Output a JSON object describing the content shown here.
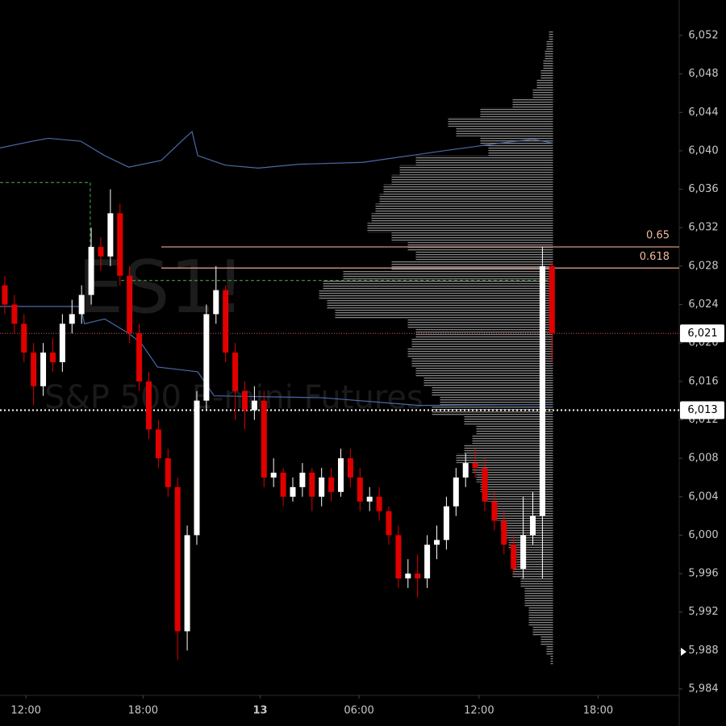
{
  "chart_data": {
    "type": "candlestick",
    "watermark": {
      "symbol": "ES1!",
      "name": "S&P 500 E-mini Futures"
    },
    "xlim": [
      -0.5,
      70.25
    ],
    "xticks": [
      {
        "value": 2.2,
        "label": "12:00"
      },
      {
        "value": 14.4,
        "label": "18:00"
      },
      {
        "value": 26.6,
        "label": "13"
      },
      {
        "value": 36.9,
        "label": "06:00"
      },
      {
        "value": 49.4,
        "label": "12:00"
      },
      {
        "value": 61.8,
        "label": "18:00"
      }
    ],
    "ylim": [
      5984,
      6052
    ],
    "yticks": [
      {
        "value": 5984,
        "label": "5,984"
      },
      {
        "value": 5988,
        "label": "5,988"
      },
      {
        "value": 5992,
        "label": "5,992"
      },
      {
        "value": 5996,
        "label": "5,996"
      },
      {
        "value": 6000,
        "label": "6,000"
      },
      {
        "value": 6004,
        "label": "6,004"
      },
      {
        "value": 6008,
        "label": "6,008"
      },
      {
        "value": 6012,
        "label": "6,012"
      },
      {
        "value": 6016,
        "label": "6,016"
      },
      {
        "value": 6020,
        "label": "6,020"
      },
      {
        "value": 6024,
        "label": "6,024"
      },
      {
        "value": 6028,
        "label": "6,028"
      },
      {
        "value": 6032,
        "label": "6,032"
      },
      {
        "value": 6036,
        "label": "6,036"
      },
      {
        "value": 6040,
        "label": "6,040"
      },
      {
        "value": 6044,
        "label": "6,044"
      },
      {
        "value": 6048,
        "label": "6,048"
      },
      {
        "value": 6052,
        "label": "6,052"
      }
    ],
    "up_color": "#ffffff",
    "down_color": "#e00000",
    "open": [
      6026,
      6024,
      6022,
      6019,
      6015.5,
      6019,
      6018,
      6022,
      6023,
      6025,
      6030,
      6029,
      6033.5,
      6027,
      6021,
      6016,
      6011,
      6008,
      6005,
      5990,
      6000,
      6014,
      6023,
      6025.5,
      6019,
      6015,
      6013,
      6014,
      6006,
      6006.5,
      6004,
      6005,
      6006.5,
      6004,
      6006,
      6004.5,
      6008,
      6006,
      6003.5,
      6004,
      6002.5,
      6000,
      5995.5,
      5996,
      5995.5,
      5999,
      5999.5,
      6003,
      6006,
      6007.5,
      6007,
      6003.5,
      6001.5,
      5999,
      5996.5,
      6000,
      6002,
      6028
    ],
    "high": [
      6027,
      6025,
      6023,
      6020,
      6020,
      6020.5,
      6023,
      6024.5,
      6026,
      6032,
      6031,
      6036,
      6034.5,
      6028,
      6022,
      6017,
      6012,
      6009,
      6006,
      6001,
      6015,
      6024,
      6028,
      6026,
      6020,
      6016,
      6015.5,
      6015,
      6008,
      6007,
      6006,
      6007.5,
      6007,
      6007,
      6007,
      6009,
      6009,
      6007,
      6005,
      6005,
      6003,
      6001,
      5997.5,
      5998,
      6000,
      6001,
      6004,
      6007,
      6008.5,
      6009,
      6008,
      6004.5,
      6002.5,
      6000,
      6004,
      6004.5,
      6030,
      6028.5
    ],
    "low": [
      6023,
      6021,
      6018,
      6013.5,
      6014.5,
      6017,
      6017,
      6021,
      6022,
      6024,
      6027.5,
      6028,
      6026,
      6020,
      6015,
      6010,
      6007,
      6004,
      5987,
      5988,
      5999,
      6013,
      6022,
      6018,
      6012,
      6011,
      6012,
      6005,
      6005,
      6003,
      6003.5,
      6004,
      6002.5,
      6003,
      6003.5,
      6004,
      6005,
      6002.5,
      6002.5,
      6001.5,
      5999,
      5994.5,
      5994.5,
      5993.5,
      5994.5,
      5997.5,
      5998.5,
      6002,
      6005,
      6006,
      6002.5,
      6000.5,
      5998,
      5996,
      5995.5,
      5999,
      5995.5,
      6018
    ],
    "close": [
      6024,
      6022,
      6019,
      6015.5,
      6019,
      6018,
      6022,
      6023,
      6025,
      6030,
      6029,
      6033.5,
      6027,
      6021,
      6016,
      6011,
      6008,
      6005,
      5990,
      6000,
      6014,
      6023,
      6025.5,
      6019,
      6015,
      6013,
      6014,
      6006,
      6006.5,
      6004,
      6005,
      6006.5,
      6004,
      6006,
      6004.5,
      6008,
      6006,
      6003.5,
      6004,
      6002.5,
      6000,
      5995.5,
      5996,
      5995.5,
      5999,
      5999.5,
      6003,
      6006,
      6007.5,
      6007,
      6003.5,
      6001.5,
      5999,
      5996.5,
      6000,
      6002,
      6028,
      6021
    ],
    "bands": [
      {
        "color": "#4a6aa8",
        "x": [
          -0.5,
          2.86,
          4.54,
          7.9,
          10.4,
          12.9,
          16.3,
          18.4,
          19.5,
          20.1,
          23,
          26.4,
          30.6,
          37.3,
          45.7,
          51.6,
          55,
          57.1
        ],
        "values": [
          6040.3,
          6041,
          6041.3,
          6041,
          6039.5,
          6038.3,
          6039,
          6041,
          6042,
          6039.5,
          6038.5,
          6038.2,
          6038.6,
          6038.8,
          6040,
          6040.8,
          6041.2,
          6040.8
        ]
      },
      {
        "color": "#4a6aa8",
        "x": [
          -0.5,
          7.9,
          8.3,
          10.4,
          12.9,
          14.2,
          15.9,
          20.1,
          21.8,
          33.1,
          43.2,
          57.1
        ],
        "values": [
          6023.8,
          6023.8,
          6022,
          6022.5,
          6021,
          6020,
          6017.5,
          6017,
          6014.5,
          6014.3,
          6013.5,
          6013.6
        ]
      }
    ],
    "levels": [
      {
        "color": "#4caf50",
        "x": [
          -0.5,
          8.9,
          8.9
        ],
        "values": [
          6036.7,
          6036.7,
          6026.4
        ]
      },
      {
        "color": "#4caf50",
        "x": [
          12.1,
          56.6
        ],
        "values": [
          6026.5,
          6026.5
        ]
      }
    ],
    "fib": [
      {
        "level": 0.65,
        "price": 6030,
        "from": 16.3
      },
      {
        "level": 0.618,
        "price": 6027.8,
        "from": 16.3
      }
    ],
    "price_lines": [
      {
        "price": 6021,
        "label": "6,021",
        "color": "#e05050"
      },
      {
        "price": 6013,
        "label": "6,013",
        "color": "#ffffff"
      }
    ],
    "volume_profile": {
      "right": 57.1,
      "prices": [
        6052,
        6051,
        6050,
        6049,
        6048,
        6047,
        6046,
        6045,
        6044,
        6043,
        6042,
        6041,
        6040,
        6039,
        6038,
        6037,
        6036,
        6035,
        6034,
        6033,
        6032,
        6031,
        6030,
        6029,
        6028,
        6027,
        6026,
        6025,
        6024,
        6023,
        6022,
        6021,
        6020,
        6019,
        6018,
        6017,
        6016,
        6015,
        6014,
        6013,
        6012,
        6011,
        6010,
        6009,
        6008,
        6007,
        6006,
        6005,
        6004,
        6003,
        6002,
        6001,
        6000,
        5999,
        5998,
        5997,
        5996,
        5995,
        5994,
        5993,
        5992,
        5991,
        5990,
        5989,
        5988,
        5987
      ],
      "values": [
        5,
        8,
        10,
        12,
        15,
        20,
        25,
        50,
        90,
        130,
        120,
        90,
        80,
        170,
        190,
        200,
        210,
        215,
        220,
        225,
        230,
        200,
        180,
        170,
        200,
        260,
        285,
        290,
        280,
        270,
        180,
        170,
        175,
        180,
        175,
        170,
        160,
        150,
        140,
        150,
        110,
        95,
        100,
        110,
        120,
        100,
        95,
        90,
        85,
        75,
        70,
        65,
        60,
        55,
        50,
        45,
        50,
        40,
        35,
        35,
        30,
        30,
        25,
        15,
        8,
        3
      ]
    }
  }
}
